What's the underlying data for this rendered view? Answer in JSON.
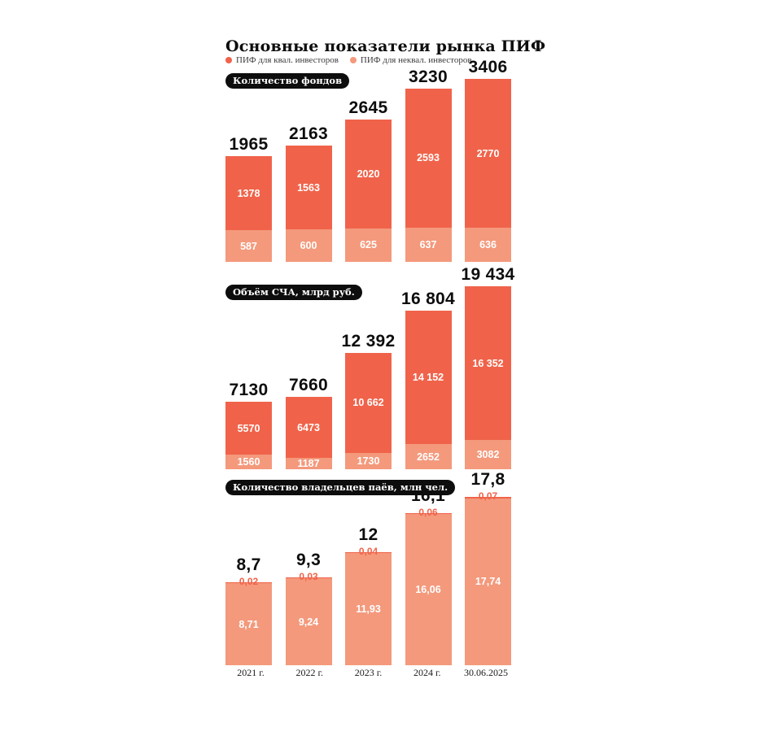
{
  "title": "Основные показатели рынка ПИФ",
  "colors": {
    "qual": "#f0634a",
    "nonqual": "#f4997c",
    "pill_bg": "#0d0d0d",
    "text": "#0d0d0d"
  },
  "legend": {
    "items": [
      {
        "label": "ПИФ для квал. инвесторов",
        "color": "#f0634a"
      },
      {
        "label": "ПИФ для неквал. инвесторов",
        "color": "#f4997c"
      }
    ]
  },
  "x_labels": [
    "2021 г.",
    "2022 г.",
    "2023 г.",
    "2024 г.",
    "30.06.2025"
  ],
  "chart_data": [
    {
      "type": "bar",
      "stacked": true,
      "title": "Количество фондов",
      "categories": [
        "2021 г.",
        "2022 г.",
        "2023 г.",
        "2024 г.",
        "30.06.2025"
      ],
      "ylim": [
        0,
        3406
      ],
      "grid": false,
      "legend_position": "top",
      "totals": [
        1965,
        2163,
        2645,
        3230,
        3406
      ],
      "total_labels": [
        "1965",
        "2163",
        "2645",
        "3230",
        "3406"
      ],
      "series": [
        {
          "name": "ПИФ для квал. инвесторов",
          "values": [
            1378,
            1563,
            2020,
            2593,
            2770
          ],
          "labels": [
            "1378",
            "1563",
            "2020",
            "2593",
            "2770"
          ]
        },
        {
          "name": "ПИФ для неквал. инвесторов",
          "values": [
            587,
            600,
            625,
            637,
            636
          ],
          "labels": [
            "587",
            "600",
            "625",
            "637",
            "636"
          ]
        }
      ]
    },
    {
      "type": "bar",
      "stacked": true,
      "title": "Объём СЧА, млрд руб.",
      "categories": [
        "2021 г.",
        "2022 г.",
        "2023 г.",
        "2024 г.",
        "30.06.2025"
      ],
      "ylim": [
        0,
        19434
      ],
      "grid": false,
      "legend_position": "top",
      "totals": [
        7130,
        7660,
        12392,
        16804,
        19434
      ],
      "total_labels": [
        "7130",
        "7660",
        "12 392",
        "16 804",
        "19 434"
      ],
      "series": [
        {
          "name": "ПИФ для квал. инвесторов",
          "values": [
            5570,
            6473,
            10662,
            14152,
            16352
          ],
          "labels": [
            "5570",
            "6473",
            "10 662",
            "14 152",
            "16 352"
          ]
        },
        {
          "name": "ПИФ для неквал. инвесторов",
          "values": [
            1560,
            1187,
            1730,
            2652,
            3082
          ],
          "labels": [
            "1560",
            "1187",
            "1730",
            "2652",
            "3082"
          ]
        }
      ]
    },
    {
      "type": "bar",
      "stacked": true,
      "title": "Количество владельцев паёв, млн чел.",
      "categories": [
        "2021 г.",
        "2022 г.",
        "2023 г.",
        "2024 г.",
        "30.06.2025"
      ],
      "ylim": [
        0,
        17.8
      ],
      "grid": false,
      "legend_position": "top",
      "totals": [
        8.7,
        9.3,
        12,
        16.1,
        17.8
      ],
      "total_labels": [
        "8,7",
        "9,3",
        "12",
        "16,1",
        "17,8"
      ],
      "series": [
        {
          "name": "ПИФ для квал. инвесторов",
          "values": [
            0.02,
            0.03,
            0.04,
            0.06,
            0.07
          ],
          "labels": [
            "0,02",
            "0,03",
            "0,04",
            "0,06",
            "0,07"
          ]
        },
        {
          "name": "ПИФ для неквал. инвесторов",
          "values": [
            8.71,
            9.24,
            11.93,
            16.06,
            17.74
          ],
          "labels": [
            "8,71",
            "9,24",
            "11,93",
            "16,06",
            "17,74"
          ]
        }
      ]
    }
  ]
}
